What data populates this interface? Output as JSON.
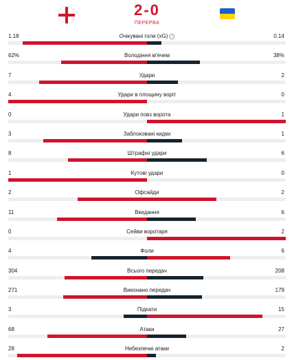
{
  "match": {
    "home_flag": "england-flag",
    "away_flag": "ukraine-flag",
    "score": "2-0",
    "status": "ПЕРЕРВА",
    "colors": {
      "accent": "#d0142c",
      "dark": "#16232e",
      "track": "#eeeeee"
    }
  },
  "stats": [
    {
      "label": "Очікувані голи (xG)",
      "home": "1.18",
      "away": "0.14",
      "info": true
    },
    {
      "label": "Володіння м'ячем",
      "home": "62%",
      "away": "38%"
    },
    {
      "label": "Удари",
      "home": "7",
      "away": "2"
    },
    {
      "label": "Удари в площину воріт",
      "home": "4",
      "away": "0"
    },
    {
      "label": "Удари повз ворота",
      "home": "0",
      "away": "1"
    },
    {
      "label": "Заблоковані кидки",
      "home": "3",
      "away": "1"
    },
    {
      "label": "Штрафні удари",
      "home": "8",
      "away": "6"
    },
    {
      "label": "Кутові удари",
      "home": "1",
      "away": "0"
    },
    {
      "label": "Офсайди",
      "home": "2",
      "away": "2"
    },
    {
      "label": "Вкидання",
      "home": "11",
      "away": "6"
    },
    {
      "label": "Сейви воротаря",
      "home": "0",
      "away": "2"
    },
    {
      "label": "Фоли",
      "home": "4",
      "away": "6"
    },
    {
      "label": "Всього передач",
      "home": "304",
      "away": "208"
    },
    {
      "label": "Виконано передач",
      "home": "271",
      "away": "179"
    },
    {
      "label": "Підкати",
      "home": "3",
      "away": "15"
    },
    {
      "label": "Атаки",
      "home": "68",
      "away": "27"
    },
    {
      "label": "Небезпечні атаки",
      "home": "28",
      "away": "2"
    }
  ]
}
